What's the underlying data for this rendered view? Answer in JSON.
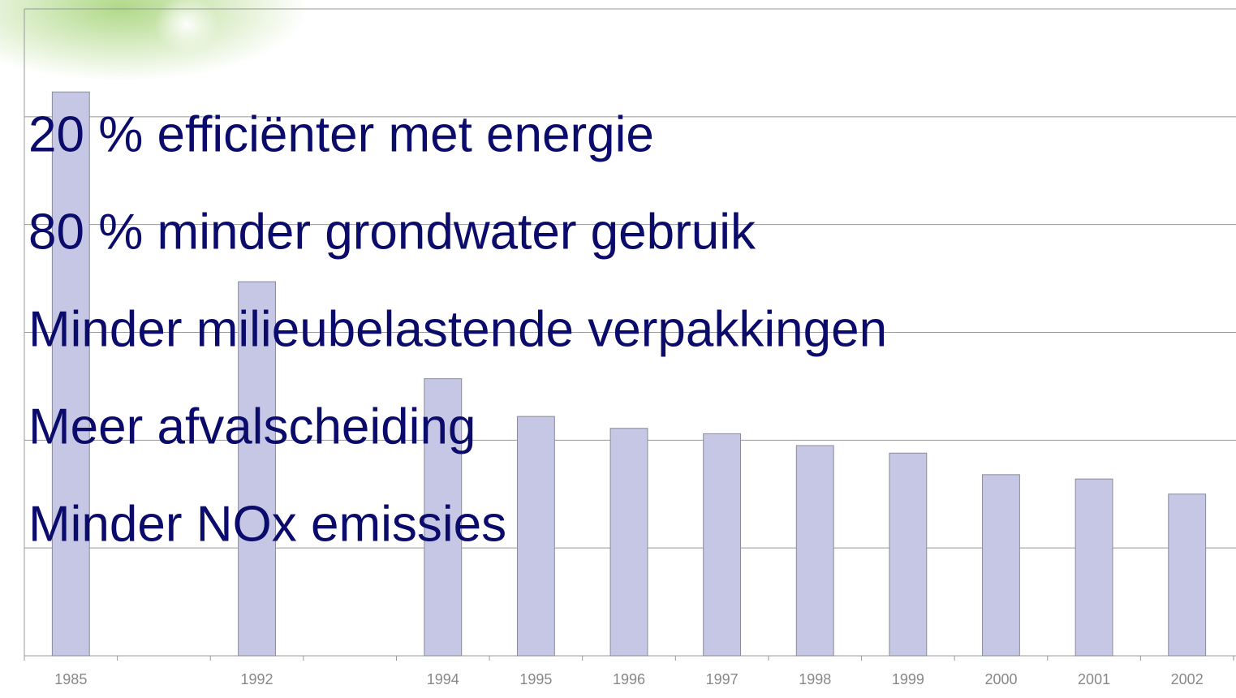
{
  "chart_data": {
    "type": "bar",
    "categories": [
      "1985",
      null,
      "1992",
      null,
      "1994",
      "1995",
      "1996",
      "1997",
      "1998",
      "1999",
      "2000",
      "2001",
      "2002"
    ],
    "values": [
      5.23,
      null,
      3.47,
      null,
      2.57,
      2.22,
      2.11,
      2.06,
      1.95,
      1.88,
      1.68,
      1.64,
      1.5
    ],
    "color": "#c6c7e4",
    "ylim": [
      0,
      6
    ],
    "yticks": [
      0,
      1,
      2,
      3,
      4,
      5,
      6
    ],
    "grid": true
  },
  "bullets": [
    "20 % efficiënter met energie",
    "80 % minder grondwater gebruik",
    "Minder milieubelastende verpakkingen",
    "Meer afvalscheiding",
    "Minder NOx emissies"
  ]
}
